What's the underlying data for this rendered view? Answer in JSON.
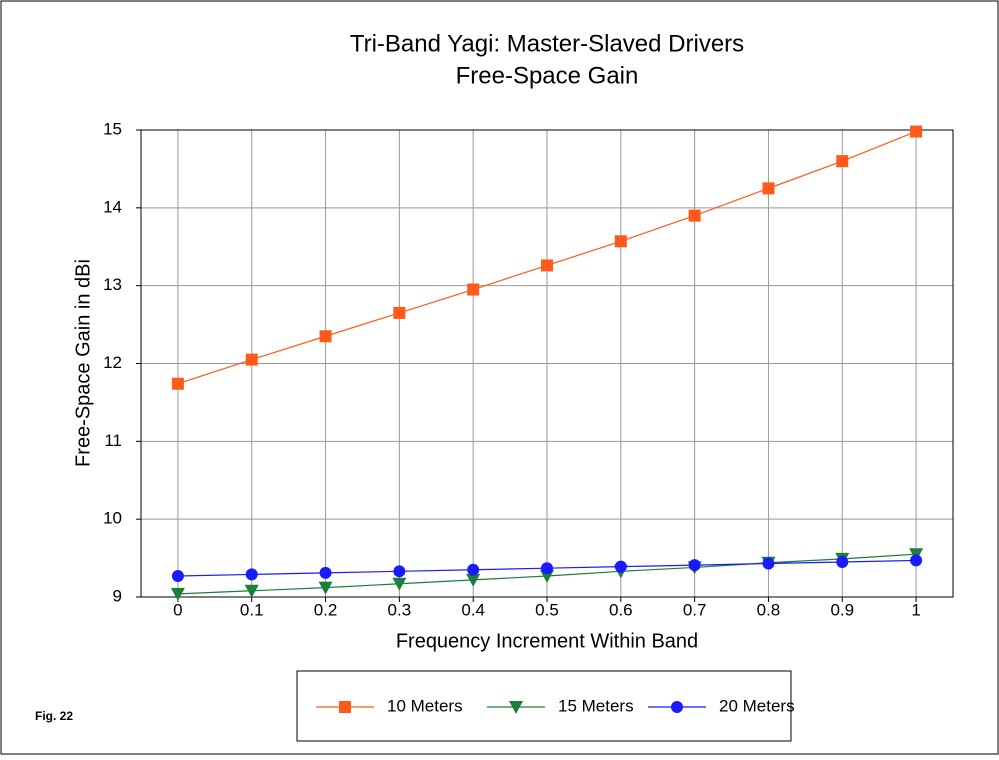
{
  "chart_data": {
    "type": "line",
    "title": "Tri-Band Yagi:  Master-Slaved Drivers",
    "subtitle": "Free-Space Gain",
    "x_label": "Frequency Increment Within Band",
    "y_label": "Free-Space Gain in dBi",
    "annotation": "Fig. 22",
    "x": [
      0,
      0.1,
      0.2,
      0.3,
      0.4,
      0.5,
      0.6,
      0.7,
      0.8,
      0.9,
      1
    ],
    "series": [
      {
        "name": "10 Meters",
        "color": "#ff5a1a",
        "marker": "square",
        "values": [
          11.74,
          12.05,
          12.35,
          12.65,
          12.95,
          13.26,
          13.57,
          13.9,
          14.25,
          14.6,
          14.98
        ]
      },
      {
        "name": "15 Meters",
        "color": "#1a7f3a",
        "marker": "triangle-down",
        "values": [
          9.04,
          9.08,
          9.12,
          9.17,
          9.22,
          9.27,
          9.33,
          9.38,
          9.44,
          9.49,
          9.55
        ]
      },
      {
        "name": "20 Meters",
        "color": "#1a1aff",
        "marker": "circle",
        "values": [
          9.27,
          9.29,
          9.31,
          9.33,
          9.35,
          9.37,
          9.39,
          9.41,
          9.43,
          9.45,
          9.47
        ]
      }
    ],
    "xlim": [
      -0.05,
      1.05
    ],
    "xticks": [
      0,
      0.1,
      0.2,
      0.3,
      0.4,
      0.5,
      0.6,
      0.7,
      0.8,
      0.9,
      1
    ],
    "ylim": [
      9,
      15
    ],
    "yticks": [
      9,
      10,
      11,
      12,
      13,
      14,
      15
    ],
    "grid": true,
    "legend": "bottom"
  }
}
